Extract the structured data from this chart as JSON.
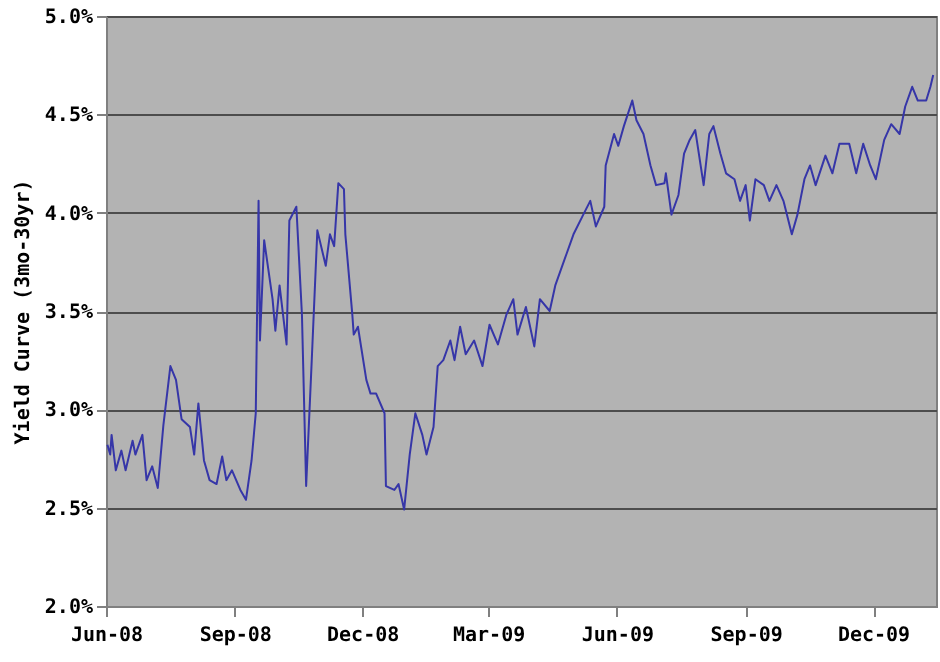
{
  "chart_data": {
    "type": "line",
    "ylabel": "Yield Curve (3mo-30yr)",
    "x": [
      "2008-06-02",
      "2008-06-04",
      "2008-06-05",
      "2008-06-08",
      "2008-06-12",
      "2008-06-15",
      "2008-06-20",
      "2008-06-22",
      "2008-06-27",
      "2008-06-30",
      "2008-07-04",
      "2008-07-08",
      "2008-07-12",
      "2008-07-17",
      "2008-07-21",
      "2008-07-25",
      "2008-07-31",
      "2008-08-03",
      "2008-08-06",
      "2008-08-10",
      "2008-08-14",
      "2008-08-19",
      "2008-08-23",
      "2008-08-26",
      "2008-08-30",
      "2008-09-05",
      "2008-09-09",
      "2008-09-13",
      "2008-09-16",
      "2008-09-18",
      "2008-09-19",
      "2008-09-22",
      "2008-09-25",
      "2008-09-28",
      "2008-09-30",
      "2008-10-03",
      "2008-10-08",
      "2008-10-10",
      "2008-10-15",
      "2008-10-19",
      "2008-10-22",
      "2008-10-26",
      "2008-10-30",
      "2008-11-05",
      "2008-11-08",
      "2008-11-11",
      "2008-11-14",
      "2008-11-18",
      "2008-11-19",
      "2008-11-24",
      "2008-11-25",
      "2008-11-28",
      "2008-12-04",
      "2008-12-07",
      "2008-12-11",
      "2008-12-17",
      "2008-12-18",
      "2008-12-24",
      "2008-12-27",
      "2008-12-31",
      "2009-01-04",
      "2009-01-08",
      "2009-01-13",
      "2009-01-16",
      "2009-01-21",
      "2009-01-24",
      "2009-01-28",
      "2009-02-02",
      "2009-02-05",
      "2009-02-09",
      "2009-02-13",
      "2009-02-19",
      "2009-02-25",
      "2009-03-02",
      "2009-03-08",
      "2009-03-14",
      "2009-03-19",
      "2009-03-22",
      "2009-03-28",
      "2009-04-03",
      "2009-04-07",
      "2009-04-14",
      "2009-04-18",
      "2009-04-26",
      "2009-05-01",
      "2009-05-08",
      "2009-05-13",
      "2009-05-17",
      "2009-05-23",
      "2009-05-24",
      "2009-05-30",
      "2009-06-02",
      "2009-06-06",
      "2009-06-12",
      "2009-06-15",
      "2009-06-20",
      "2009-06-25",
      "2009-06-29",
      "2009-07-05",
      "2009-07-06",
      "2009-07-10",
      "2009-07-15",
      "2009-07-19",
      "2009-07-23",
      "2009-07-27",
      "2009-08-02",
      "2009-08-06",
      "2009-08-09",
      "2009-08-14",
      "2009-08-18",
      "2009-08-24",
      "2009-08-28",
      "2009-09-01",
      "2009-09-04",
      "2009-09-08",
      "2009-09-14",
      "2009-09-18",
      "2009-09-23",
      "2009-09-28",
      "2009-10-04",
      "2009-10-08",
      "2009-10-13",
      "2009-10-17",
      "2009-10-21",
      "2009-10-28",
      "2009-11-02",
      "2009-11-07",
      "2009-11-14",
      "2009-11-19",
      "2009-11-24",
      "2009-11-29",
      "2009-12-03",
      "2009-12-09",
      "2009-12-14",
      "2009-12-20",
      "2009-12-24",
      "2009-12-29",
      "2010-01-02",
      "2010-01-08",
      "2010-01-11",
      "2010-01-13"
    ],
    "series": [
      {
        "color": "#3636a8",
        "values": [
          2.82,
          2.77,
          2.87,
          2.69,
          2.79,
          2.69,
          2.84,
          2.77,
          2.87,
          2.64,
          2.71,
          2.6,
          2.92,
          3.22,
          3.15,
          2.95,
          2.91,
          2.77,
          3.03,
          2.74,
          2.64,
          2.62,
          2.76,
          2.64,
          2.69,
          2.59,
          2.54,
          2.74,
          2.98,
          4.06,
          3.35,
          3.86,
          3.71,
          3.56,
          3.4,
          3.63,
          3.33,
          3.96,
          4.03,
          3.48,
          2.61,
          3.25,
          3.91,
          3.73,
          3.89,
          3.83,
          4.15,
          4.12,
          3.89,
          3.48,
          3.38,
          3.42,
          3.15,
          3.08,
          3.08,
          2.98,
          2.61,
          2.59,
          2.62,
          2.49,
          2.77,
          2.98,
          2.87,
          2.77,
          2.91,
          3.22,
          3.25,
          3.35,
          3.25,
          3.42,
          3.28,
          3.35,
          3.22,
          3.43,
          3.33,
          3.48,
          3.56,
          3.38,
          3.52,
          3.32,
          3.56,
          3.5,
          3.63,
          3.79,
          3.89,
          3.99,
          4.06,
          3.93,
          4.03,
          4.24,
          4.4,
          4.34,
          4.44,
          4.57,
          4.47,
          4.4,
          4.24,
          4.14,
          4.15,
          4.2,
          3.99,
          4.09,
          4.3,
          4.37,
          4.42,
          4.14,
          4.4,
          4.44,
          4.3,
          4.2,
          4.17,
          4.06,
          4.14,
          3.96,
          4.17,
          4.14,
          4.06,
          4.14,
          4.06,
          3.89,
          3.99,
          4.17,
          4.24,
          4.14,
          4.29,
          4.2,
          4.35,
          4.35,
          4.2,
          4.35,
          4.24,
          4.17,
          4.37,
          4.45,
          4.4,
          4.54,
          4.64,
          4.57,
          4.57,
          4.64,
          4.7
        ]
      }
    ],
    "xlim": [
      "2008-06-01",
      "2010-01-15"
    ],
    "xticks": [
      {
        "value": "2008-06-01",
        "label": "Jun-08"
      },
      {
        "value": "2008-09-01",
        "label": "Sep-08"
      },
      {
        "value": "2008-12-01",
        "label": "Dec-08"
      },
      {
        "value": "2009-03-01",
        "label": "Mar-09"
      },
      {
        "value": "2009-06-01",
        "label": "Jun-09"
      },
      {
        "value": "2009-09-01",
        "label": "Sep-09"
      },
      {
        "value": "2009-12-01",
        "label": "Dec-09"
      }
    ],
    "ylim": [
      2.0,
      5.0
    ],
    "yticks": [
      {
        "value": 2.0,
        "label": "2.0%"
      },
      {
        "value": 2.5,
        "label": "2.5%"
      },
      {
        "value": 3.0,
        "label": "3.0%"
      },
      {
        "value": 3.5,
        "label": "3.5%"
      },
      {
        "value": 4.0,
        "label": "4.0%"
      },
      {
        "value": 4.5,
        "label": "4.5%"
      },
      {
        "value": 5.0,
        "label": "5.0%"
      }
    ],
    "grid": "y",
    "legend": false
  }
}
